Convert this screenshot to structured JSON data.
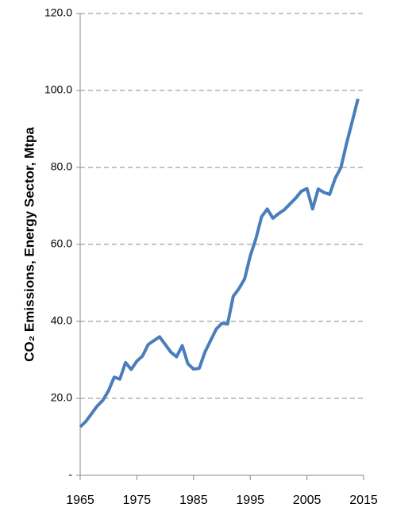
{
  "chart_data": {
    "type": "line",
    "y_label": "CO₂ Emissions, Energy Sector, Mtpa",
    "x": [
      1965,
      1966,
      1967,
      1968,
      1969,
      1970,
      1971,
      1972,
      1973,
      1974,
      1975,
      1976,
      1977,
      1978,
      1979,
      1980,
      1981,
      1982,
      1983,
      1984,
      1985,
      1986,
      1987,
      1988,
      1989,
      1990,
      1991,
      1992,
      1993,
      1994,
      1995,
      1996,
      1997,
      1998,
      1999,
      2000,
      2001,
      2002,
      2003,
      2004,
      2005,
      2006,
      2007,
      2008,
      2009,
      2010,
      2011,
      2012,
      2013,
      2014
    ],
    "series": [
      {
        "color": "#4a7ebb",
        "values": [
          12.6,
          14,
          16,
          18,
          19.5,
          22,
          25.5,
          25,
          29.3,
          27.5,
          29.7,
          31,
          34,
          35,
          36,
          34,
          32,
          30.8,
          33.7,
          29,
          27.6,
          27.8,
          32,
          35,
          38,
          39.5,
          39.3,
          46.5,
          48.5,
          51,
          57,
          61.5,
          67.2,
          69.2,
          66.8,
          68,
          69,
          70.5,
          72,
          73.8,
          74.5,
          69.2,
          74.4,
          73.5,
          73,
          77.2,
          80,
          86.3,
          92,
          97.8
        ]
      }
    ],
    "xlim": [
      1965,
      2015
    ],
    "xticks": [
      1965,
      1975,
      1985,
      1995,
      2005,
      2015
    ],
    "ylim": [
      0,
      120
    ],
    "yticks": [
      {
        "value": 0,
        "label": "-"
      },
      {
        "value": 20,
        "label": "20.0"
      },
      {
        "value": 40,
        "label": "40.0"
      },
      {
        "value": 60,
        "label": "60.0"
      },
      {
        "value": 80,
        "label": "80.0"
      },
      {
        "value": 100,
        "label": "100.0"
      },
      {
        "value": 120,
        "label": "120.0"
      }
    ],
    "grid": true
  }
}
